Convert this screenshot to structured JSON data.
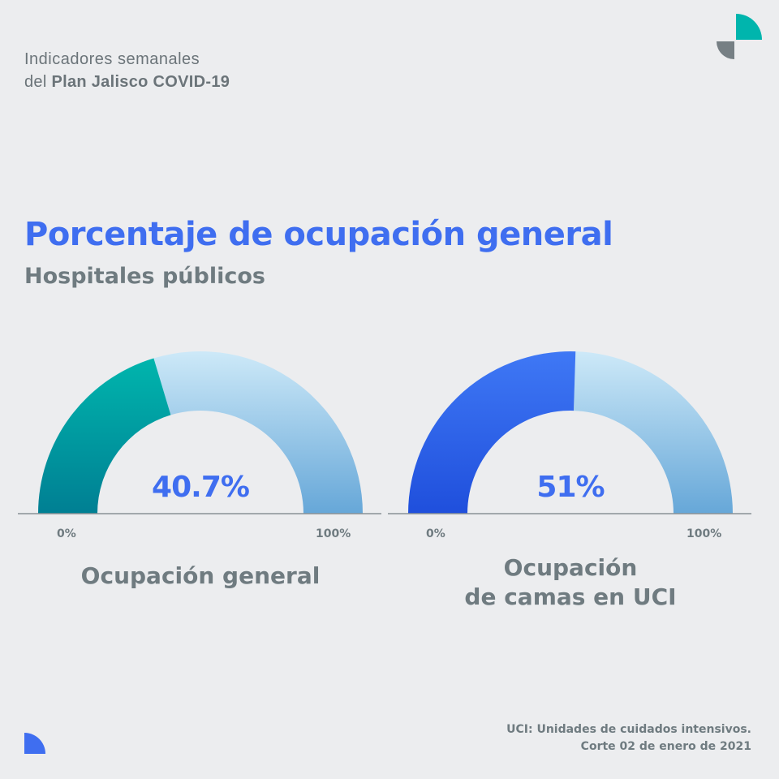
{
  "header": {
    "line1": "Indicadores semanales",
    "line2_prefix": "del ",
    "line2_bold": "Plan Jalisco COVID-19"
  },
  "title": "Porcentaje de ocupación general",
  "subtitle": "Hospitales públicos",
  "chart_data": [
    {
      "type": "gauge",
      "value": 40.7,
      "value_label": "40.7%",
      "range": [
        0,
        100
      ],
      "min_label": "0%",
      "max_label": "100%",
      "label": "Ocupación general",
      "fill_colors": [
        "#00b5ad",
        "#007f93"
      ],
      "track_colors": [
        "#cde9f8",
        "#66a7d8"
      ]
    },
    {
      "type": "gauge",
      "value": 51,
      "value_label": "51%",
      "range": [
        0,
        100
      ],
      "min_label": "0%",
      "max_label": "100%",
      "label_line1": "Ocupación",
      "label_line2": "de camas en UCI",
      "fill_colors": [
        "#3f78f5",
        "#1f4fdc"
      ],
      "track_colors": [
        "#cde9f8",
        "#66a7d8"
      ]
    }
  ],
  "footer": {
    "line1": "UCI: Unidades de cuidados intensivos.",
    "line2": "Corte 02 de enero de 2021"
  },
  "logo_colors": {
    "teal": "#00b5ad",
    "gray": "#767f84",
    "blue": "#3f6ef0"
  }
}
